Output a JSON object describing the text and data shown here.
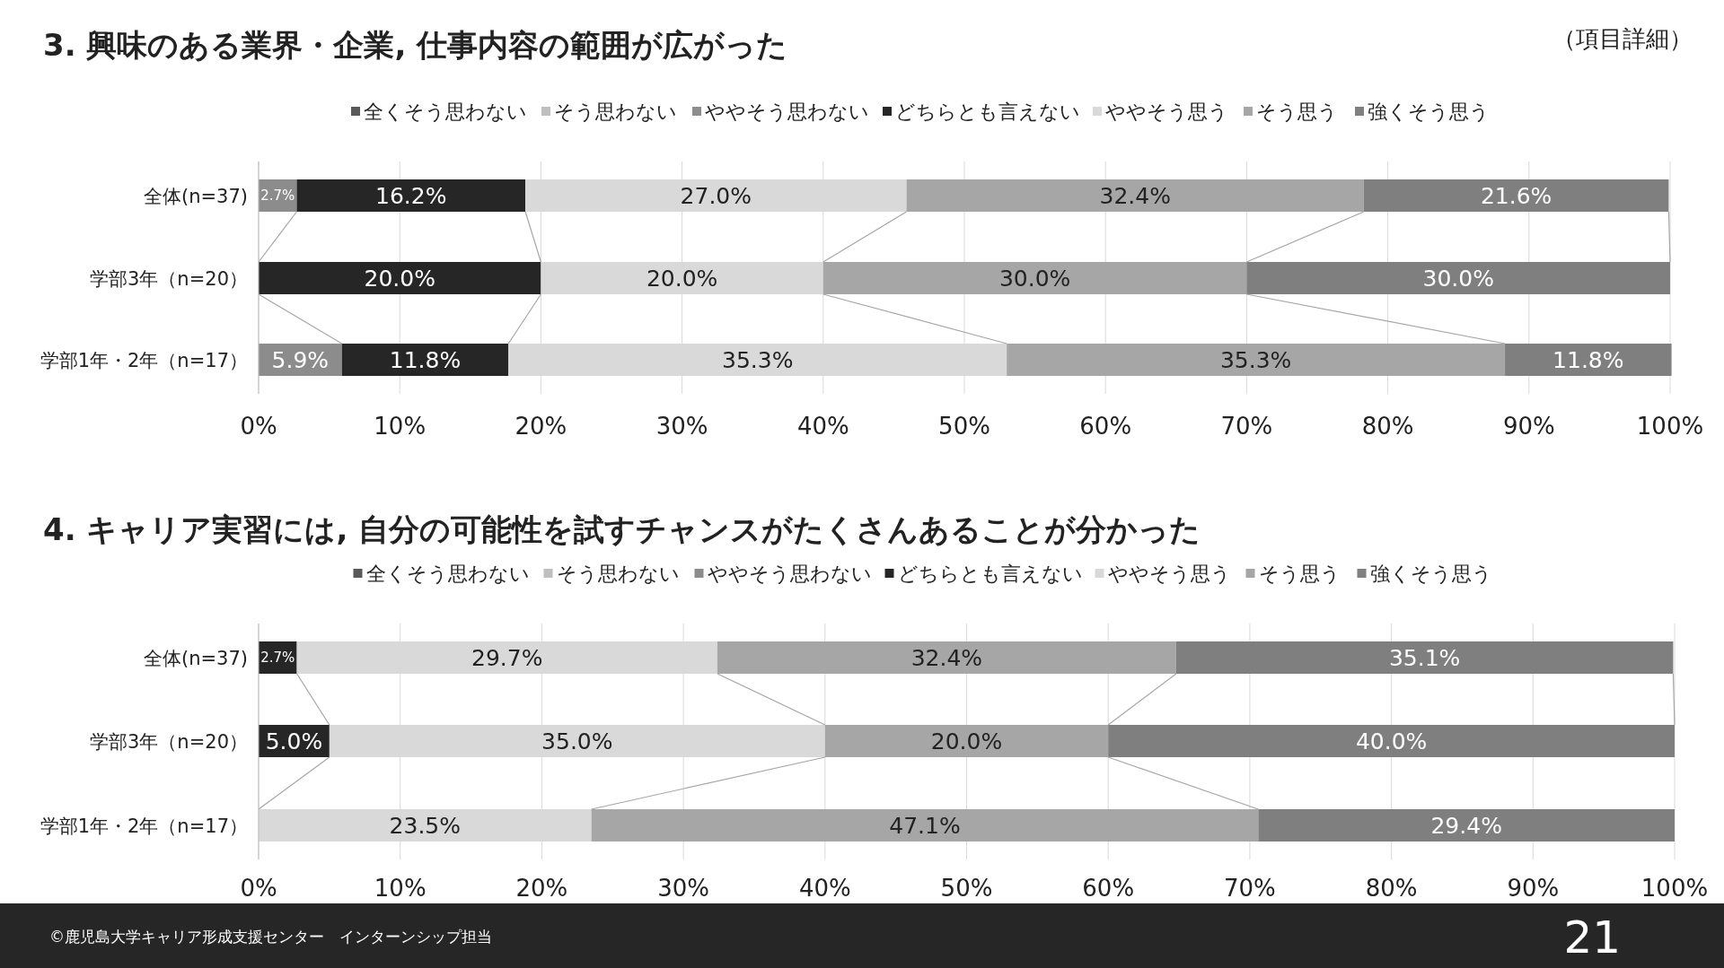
{
  "chart_data": [
    {
      "type": "bar",
      "orientation": "horizontal",
      "stacked": true,
      "title": "3. 興味のある業界・企業, 仕事内容の範囲が広がった",
      "subtitle": "（項目詳細）",
      "legend": "top",
      "grid": "x",
      "categories": [
        "全体(n=37)",
        "学部3年（n=20）",
        "学部1年・2年（n=17）"
      ],
      "xlim": [
        0,
        100
      ],
      "xticks": [
        {
          "value": 0,
          "label": "0%"
        },
        {
          "value": 10,
          "label": "10%"
        },
        {
          "value": 20,
          "label": "20%"
        },
        {
          "value": 30,
          "label": "30%"
        },
        {
          "value": 40,
          "label": "40%"
        },
        {
          "value": 50,
          "label": "50%"
        },
        {
          "value": 60,
          "label": "60%"
        },
        {
          "value": 70,
          "label": "70%"
        },
        {
          "value": 80,
          "label": "80%"
        },
        {
          "value": 90,
          "label": "90%"
        },
        {
          "value": 100,
          "label": "100%"
        }
      ],
      "series": [
        {
          "name": "全くそう思わない",
          "color": "#595959",
          "values": [
            null,
            null,
            null
          ],
          "value_labels": [
            null,
            null,
            null
          ]
        },
        {
          "name": "そう思わない",
          "color": "#bfbfbf",
          "values": [
            null,
            null,
            null
          ],
          "value_labels": [
            null,
            null,
            null
          ]
        },
        {
          "name": "ややそう思わない",
          "color": "#8c8c8c",
          "values": [
            2.7,
            null,
            5.9
          ],
          "value_labels": [
            "2.7%",
            null,
            "5.9%"
          ]
        },
        {
          "name": "どちらとも言えない",
          "color": "#262626",
          "values": [
            16.2,
            20.0,
            11.8
          ],
          "value_labels": [
            "16.2%",
            "20.0%",
            "11.8%"
          ]
        },
        {
          "name": "ややそう思う",
          "color": "#d9d9d9",
          "values": [
            27.0,
            20.0,
            35.3
          ],
          "value_labels": [
            "27.0%",
            "20.0%",
            "35.3%"
          ]
        },
        {
          "name": "そう思う",
          "color": "#a6a6a6",
          "values": [
            32.4,
            30.0,
            35.3
          ],
          "value_labels": [
            "32.4%",
            "30.0%",
            "35.3%"
          ]
        },
        {
          "name": "強くそう思う",
          "color": "#7f7f7f",
          "values": [
            21.6,
            30.0,
            11.8
          ],
          "value_labels": [
            "21.6%",
            "30.0%",
            "11.8%"
          ]
        }
      ]
    },
    {
      "type": "bar",
      "orientation": "horizontal",
      "stacked": true,
      "title": "4. キャリア実習には, 自分の可能性を試すチャンスがたくさんあることが分かった",
      "legend": "top",
      "grid": "x",
      "categories": [
        "全体(n=37)",
        "学部3年（n=20）",
        "学部1年・2年（n=17）"
      ],
      "xlim": [
        0,
        100
      ],
      "xticks": [
        {
          "value": 0,
          "label": "0%"
        },
        {
          "value": 10,
          "label": "10%"
        },
        {
          "value": 20,
          "label": "20%"
        },
        {
          "value": 30,
          "label": "30%"
        },
        {
          "value": 40,
          "label": "40%"
        },
        {
          "value": 50,
          "label": "50%"
        },
        {
          "value": 60,
          "label": "60%"
        },
        {
          "value": 70,
          "label": "70%"
        },
        {
          "value": 80,
          "label": "80%"
        },
        {
          "value": 90,
          "label": "90%"
        },
        {
          "value": 100,
          "label": "100%"
        }
      ],
      "annotations": [
        "©鹿児島大学キャリア形成支援センター　インターンシップ担当",
        "21"
      ],
      "series": [
        {
          "name": "全くそう思わない",
          "color": "#595959",
          "values": [
            null,
            null,
            null
          ],
          "value_labels": [
            null,
            null,
            null
          ]
        },
        {
          "name": "そう思わない",
          "color": "#bfbfbf",
          "values": [
            null,
            null,
            null
          ],
          "value_labels": [
            null,
            null,
            null
          ]
        },
        {
          "name": "ややそう思わない",
          "color": "#8c8c8c",
          "values": [
            null,
            null,
            null
          ],
          "value_labels": [
            null,
            null,
            null
          ]
        },
        {
          "name": "どちらとも言えない",
          "color": "#262626",
          "values": [
            2.7,
            5.0,
            null
          ],
          "value_labels": [
            "2.7%",
            "5.0%",
            null
          ]
        },
        {
          "name": "ややそう思う",
          "color": "#d9d9d9",
          "values": [
            29.7,
            35.0,
            23.5
          ],
          "value_labels": [
            "29.7%",
            "35.0%",
            "23.5%"
          ]
        },
        {
          "name": "そう思う",
          "color": "#a6a6a6",
          "values": [
            32.4,
            20.0,
            47.1
          ],
          "value_labels": [
            "32.4%",
            "20.0%",
            "47.1%"
          ]
        },
        {
          "name": "強くそう思う",
          "color": "#7f7f7f",
          "values": [
            35.1,
            40.0,
            29.4
          ],
          "value_labels": [
            "35.1%",
            "40.0%",
            "29.4%"
          ]
        }
      ]
    }
  ]
}
